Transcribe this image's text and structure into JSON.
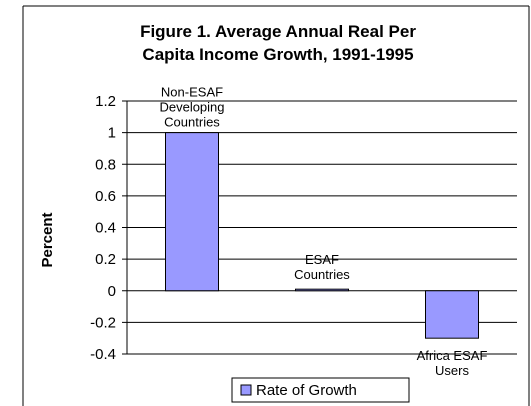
{
  "chart_data": {
    "type": "bar",
    "title_lines": [
      "Figure 1.  Average Annual Real Per",
      "Capita Income Growth, 1991-1995"
    ],
    "ylabel": "Percent",
    "xlabel": "",
    "categories": [
      "Non-ESAF Developing Countries",
      "ESAF Countries",
      "Africa ESAF Users"
    ],
    "category_label_lines": [
      [
        "Non-ESAF",
        "Developing",
        "Countries"
      ],
      [
        "ESAF",
        "Countries"
      ],
      [
        "Africa ESAF",
        "Users"
      ]
    ],
    "series": [
      {
        "name": "Rate of Growth",
        "values": [
          1.0,
          0.01,
          -0.3
        ]
      }
    ],
    "ylim": [
      -0.4,
      1.2
    ],
    "yticks": [
      1.2,
      1,
      0.8,
      0.6,
      0.4,
      0.2,
      0,
      -0.2,
      -0.4
    ],
    "ytick_labels": [
      "1.2",
      "1",
      "0.8",
      "0.6",
      "0.4",
      "0.2",
      "0",
      "-0.2",
      "-0.4"
    ],
    "grid": "horizontal",
    "legend_position": "bottom",
    "colors": {
      "bar": "#9999ff",
      "bar_stroke": "#000000",
      "grid": "#000000",
      "text": "#000000"
    }
  }
}
